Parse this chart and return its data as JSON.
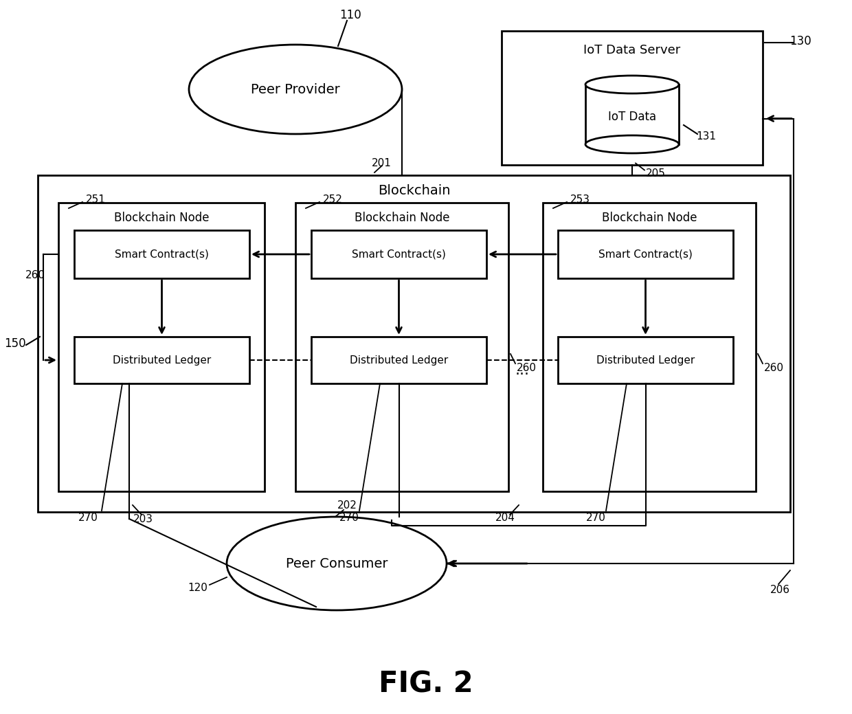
{
  "fig_label": "FIG. 2",
  "bg_color": "#ffffff",
  "peer_provider_label": "Peer Provider",
  "ref_110": "110",
  "iot_server_label": "IoT Data Server",
  "ref_130": "130",
  "iot_data_label": "IoT Data",
  "ref_131": "131",
  "blockchain_label": "Blockchain",
  "ref_150": "150",
  "peer_consumer_label": "Peer Consumer",
  "ref_120": "120",
  "node1_ref": "251",
  "node2_ref": "252",
  "node3_ref": "253",
  "node_label": "Blockchain Node",
  "smart_contract_label": "Smart Contract(s)",
  "distributed_ledger_label": "Distributed Ledger",
  "ref_260": "260",
  "ref_270": "270",
  "ref_201": "201",
  "ref_202": "202",
  "ref_203": "203",
  "ref_204": "204",
  "ref_205": "205",
  "ref_206": "206"
}
